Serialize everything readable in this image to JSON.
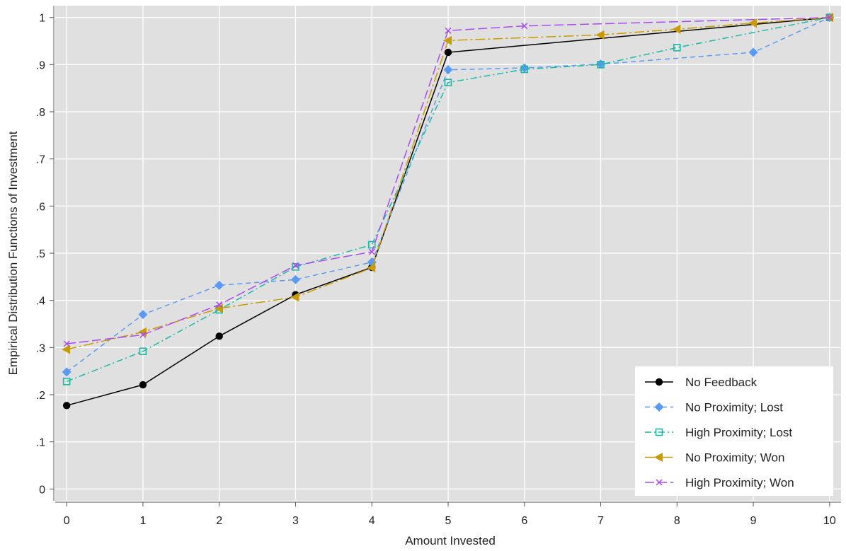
{
  "chart_data": {
    "type": "line",
    "title": "",
    "xlabel": "Amount Invested",
    "ylabel": "Empirical Distribution Functions of Investment",
    "x": [
      0,
      1,
      2,
      3,
      4,
      5,
      6,
      7,
      8,
      9,
      10
    ],
    "xlim": [
      -0.15,
      10.15
    ],
    "ylim": [
      -0.025,
      1.025
    ],
    "x_ticks": [
      "0",
      "1",
      "2",
      "3",
      "4",
      "5",
      "6",
      "7",
      "8",
      "9",
      "10"
    ],
    "y_ticks": [
      {
        "value": 0,
        "label": "0"
      },
      {
        "value": 0.1,
        "label": ".1"
      },
      {
        "value": 0.2,
        "label": ".2"
      },
      {
        "value": 0.3,
        "label": ".3"
      },
      {
        "value": 0.4,
        "label": ".4"
      },
      {
        "value": 0.5,
        "label": ".5"
      },
      {
        "value": 0.6,
        "label": ".6"
      },
      {
        "value": 0.7,
        "label": ".7"
      },
      {
        "value": 0.8,
        "label": ".8"
      },
      {
        "value": 0.9,
        "label": ".9"
      },
      {
        "value": 1,
        "label": "1"
      }
    ],
    "grid": true,
    "legend_position": "bottom-right",
    "series": [
      {
        "name": "No Feedback",
        "color": "#000000",
        "marker": "circle",
        "dash": "solid",
        "x": [
          0,
          1,
          2,
          3,
          4,
          5,
          10
        ],
        "values": [
          0.177,
          0.221,
          0.324,
          0.412,
          0.47,
          0.926,
          1.0
        ]
      },
      {
        "name": "No Proximity; Lost",
        "color": "#5a9af5",
        "marker": "diamond",
        "dash": "dashed",
        "x": [
          0,
          1,
          2,
          3,
          4,
          5,
          6,
          7,
          9,
          10
        ],
        "values": [
          0.248,
          0.37,
          0.432,
          0.444,
          0.481,
          0.889,
          0.893,
          0.901,
          0.926,
          1.0
        ]
      },
      {
        "name": "High Proximity; Lost",
        "color": "#1bb9a3",
        "marker": "square-open",
        "dash": "dashdot",
        "x": [
          0,
          1,
          2,
          3,
          4,
          5,
          6,
          7,
          8,
          10
        ],
        "values": [
          0.228,
          0.292,
          0.38,
          0.471,
          0.518,
          0.862,
          0.89,
          0.9,
          0.936,
          1.0
        ]
      },
      {
        "name": "No Proximity; Won",
        "color": "#c89b00",
        "marker": "triangle-left",
        "dash": "longdashdot",
        "x": [
          0,
          1,
          2,
          3,
          4,
          5,
          7,
          8,
          9,
          10
        ],
        "values": [
          0.296,
          0.333,
          0.383,
          0.407,
          0.469,
          0.951,
          0.963,
          0.975,
          0.988,
          1.0
        ]
      },
      {
        "name": "High Proximity; Won",
        "color": "#a94cf2",
        "marker": "x",
        "dash": "longdash",
        "x": [
          0,
          1,
          2,
          3,
          4,
          5,
          6,
          10
        ],
        "values": [
          0.308,
          0.327,
          0.391,
          0.474,
          0.503,
          0.972,
          0.982,
          1.0
        ]
      }
    ]
  }
}
